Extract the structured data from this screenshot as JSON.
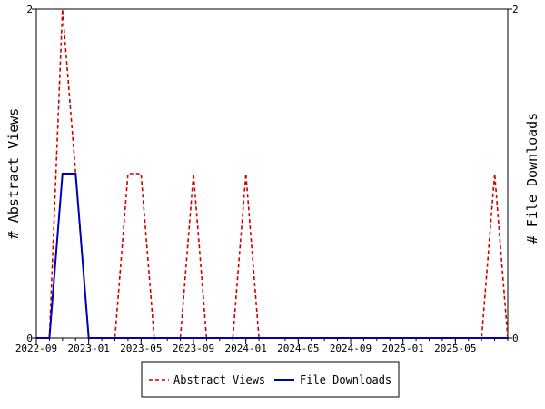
{
  "chart_data": {
    "type": "line",
    "title": "",
    "ylabel_left": "# Abstract Views",
    "ylabel_right": "# File Downloads",
    "ylim_left": [
      0,
      2
    ],
    "ylim_right": [
      0,
      2
    ],
    "y_ticks_left": [
      "0",
      "2"
    ],
    "y_ticks_right": [
      "0",
      "2"
    ],
    "x_range": [
      "2022-09",
      "2025-09"
    ],
    "x_ticks": [
      "2022-09",
      "2023-01",
      "2023-05",
      "2023-09",
      "2024-01",
      "2024-05",
      "2024-09",
      "2025-01",
      "2025-05"
    ],
    "grid": false,
    "legend_position": "bottom-center",
    "x": [
      "2022-09",
      "2022-10",
      "2022-11",
      "2022-12",
      "2023-01",
      "2023-02",
      "2023-03",
      "2023-04",
      "2023-05",
      "2023-06",
      "2023-07",
      "2023-08",
      "2023-09",
      "2023-10",
      "2023-11",
      "2023-12",
      "2024-01",
      "2024-02",
      "2024-03",
      "2024-04",
      "2024-05",
      "2024-06",
      "2024-07",
      "2024-08",
      "2024-09",
      "2024-10",
      "2024-11",
      "2024-12",
      "2025-01",
      "2025-02",
      "2025-03",
      "2025-04",
      "2025-05",
      "2025-06",
      "2025-07",
      "2025-08",
      "2025-09"
    ],
    "series": [
      {
        "name": "Abstract Views",
        "color": "#cc0000",
        "style": "dashed",
        "axis": "left",
        "values": [
          0,
          0,
          2,
          1,
          0,
          0,
          0,
          1,
          1,
          0,
          0,
          0,
          1,
          0,
          0,
          0,
          1,
          0,
          0,
          0,
          0,
          0,
          0,
          0,
          0,
          0,
          0,
          0,
          0,
          0,
          0,
          0,
          0,
          0,
          0,
          1,
          0
        ]
      },
      {
        "name": "File Downloads",
        "color": "#0000bb",
        "style": "solid",
        "axis": "right",
        "values": [
          0,
          0,
          1,
          1,
          0,
          0,
          0,
          0,
          0,
          0,
          0,
          0,
          0,
          0,
          0,
          0,
          0,
          0,
          0,
          0,
          0,
          0,
          0,
          0,
          0,
          0,
          0,
          0,
          0,
          0,
          0,
          0,
          0,
          0,
          0,
          0,
          0
        ]
      }
    ]
  }
}
